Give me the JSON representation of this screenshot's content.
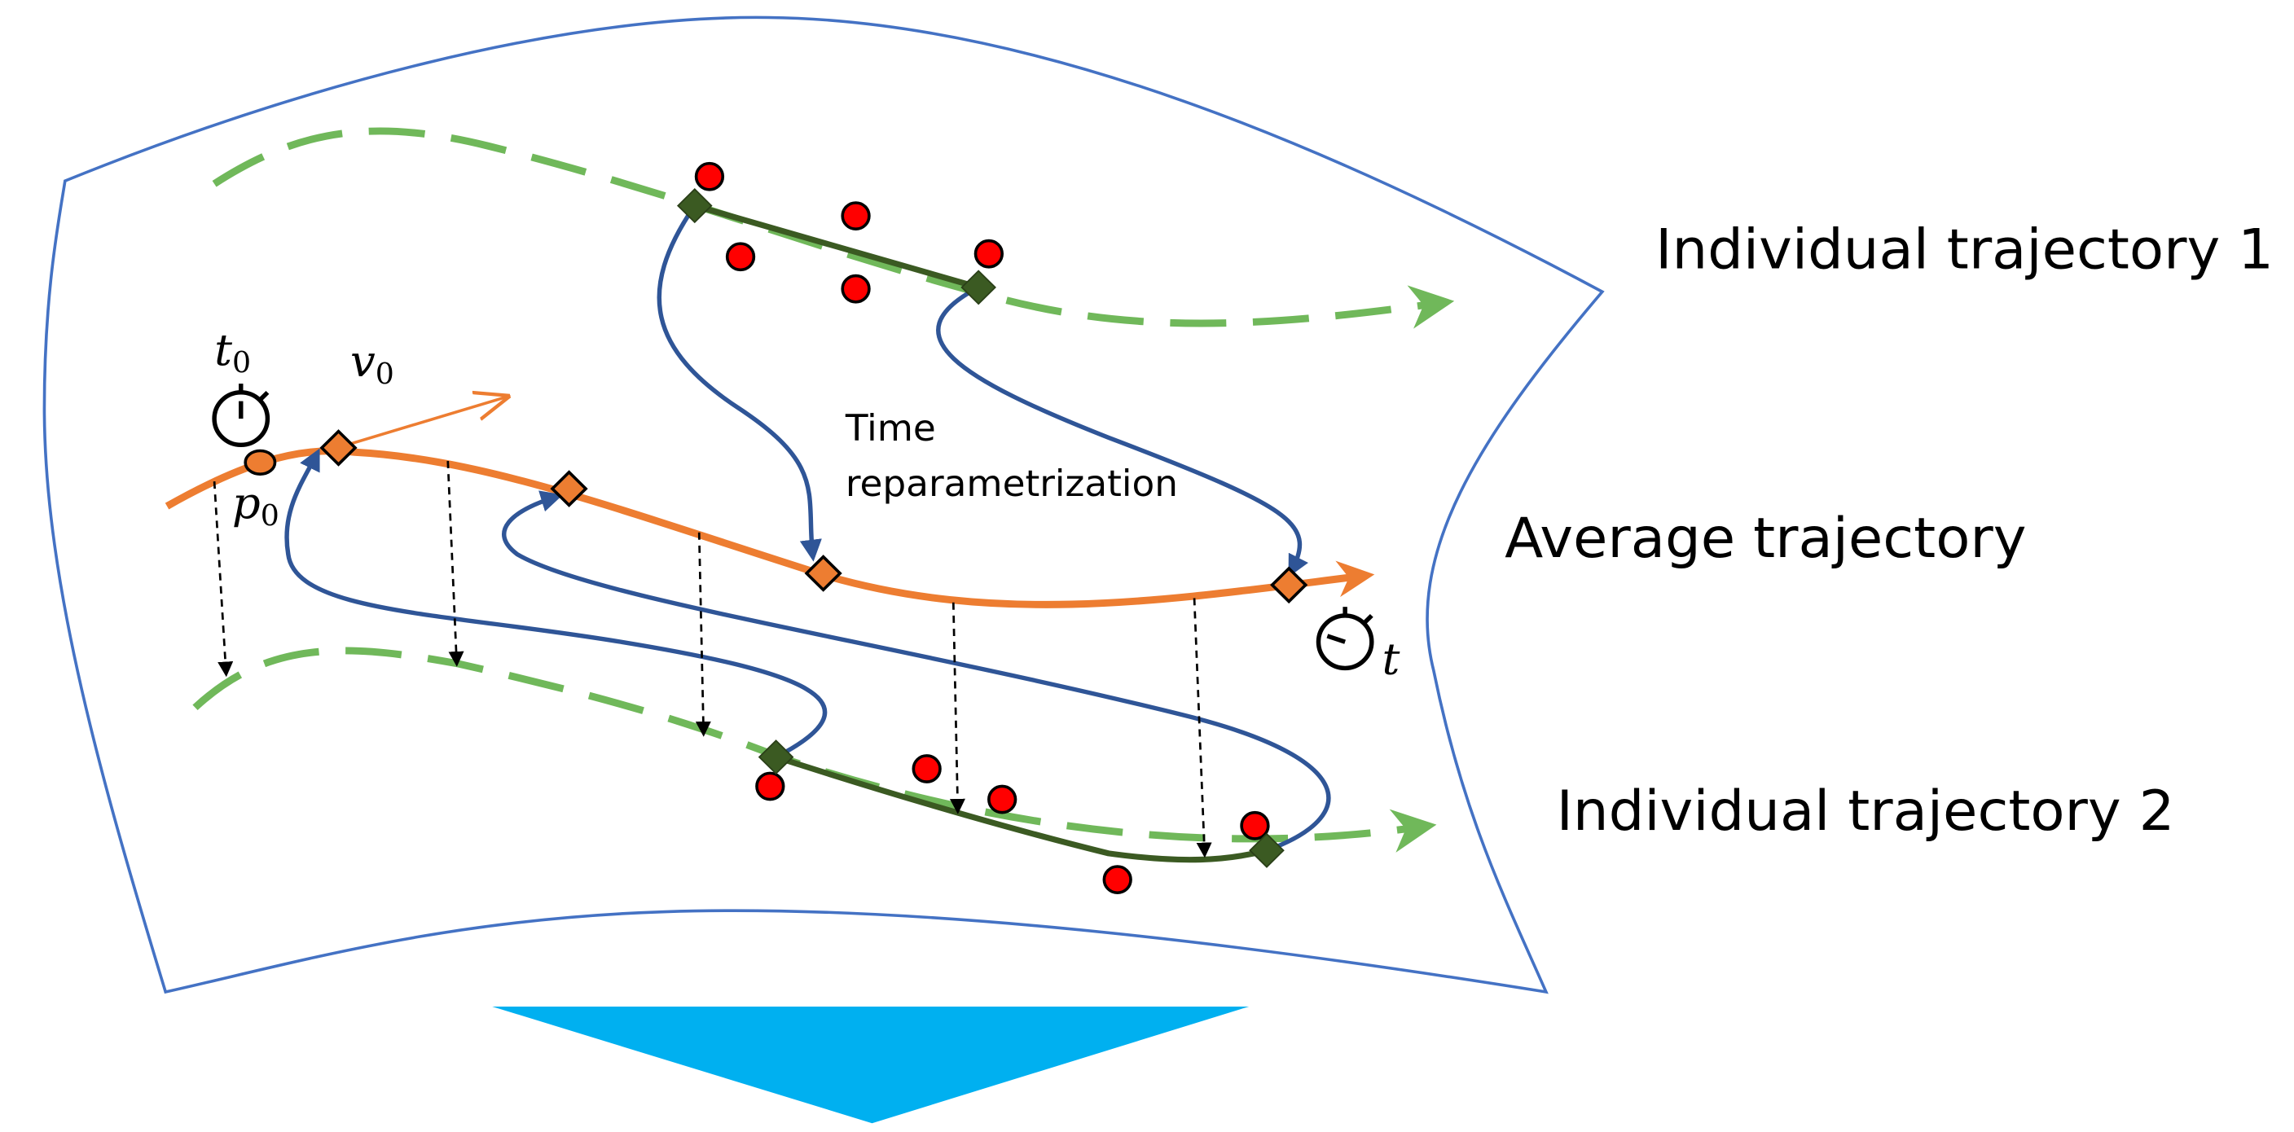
{
  "labels": {
    "trajectory_1": "Individual trajectory 1",
    "average": "Average trajectory",
    "trajectory_2": "Individual trajectory 2",
    "time_reparametrization": [
      "Time",
      "reparametrization"
    ]
  },
  "math_labels": [
    {
      "base": "t",
      "sub": "0"
    },
    {
      "base": "v",
      "sub": "0"
    },
    {
      "base": "p",
      "sub": "0"
    },
    {
      "base": "t"
    }
  ]
}
